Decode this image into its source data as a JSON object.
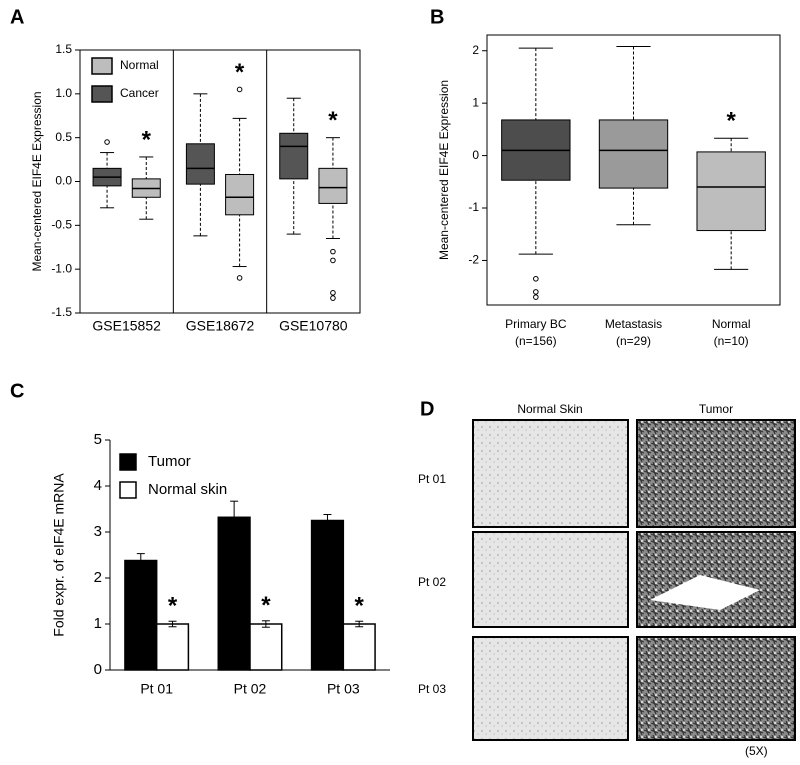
{
  "chart_data": [
    {
      "type": "box",
      "panel": "A",
      "ylabel": "Mean-centered EIF4E Expression",
      "categories": [
        "GSE15852",
        "GSE18672",
        "GSE10780"
      ],
      "ylim": [
        -1.5,
        1.5
      ],
      "yticks": [
        -1.5,
        {
          "value": -1,
          "label": "-1.0"
        },
        -0.5,
        {
          "value": 0,
          "label": "0.0"
        },
        0.5,
        {
          "value": 1,
          "label": "1.0"
        },
        1.5
      ],
      "legend": "top-left",
      "grid": false,
      "group_dividers": true,
      "series": [
        {
          "name": "Cancer",
          "color": "#555555",
          "boxes": [
            {
              "whislo": -0.3,
              "q1": -0.05,
              "med": 0.05,
              "q3": 0.15,
              "whishi": 0.33,
              "fliers": [
                0.45
              ]
            },
            {
              "whislo": -0.62,
              "q1": -0.03,
              "med": 0.15,
              "q3": 0.43,
              "whishi": 1.0,
              "fliers": []
            },
            {
              "whislo": -0.6,
              "q1": 0.03,
              "med": 0.4,
              "q3": 0.55,
              "whishi": 0.95,
              "fliers": []
            }
          ]
        },
        {
          "name": "Normal",
          "color": "#bdbdbd",
          "annotations": [
            "*",
            "*",
            "*"
          ],
          "boxes": [
            {
              "whislo": -0.43,
              "q1": -0.18,
              "med": -0.08,
              "q3": 0.03,
              "whishi": 0.28,
              "fliers": []
            },
            {
              "whislo": -0.97,
              "q1": -0.38,
              "med": -0.18,
              "q3": 0.08,
              "whishi": 0.72,
              "fliers": [
                1.05,
                -1.1
              ]
            },
            {
              "whislo": -0.65,
              "q1": -0.25,
              "med": -0.07,
              "q3": 0.15,
              "whishi": 0.5,
              "fliers": [
                -0.8,
                -0.9,
                -1.27,
                -1.33
              ]
            }
          ]
        }
      ]
    },
    {
      "type": "box",
      "panel": "B",
      "ylabel": "Mean-centered EIF4E Expression",
      "categories": [
        "Primary BC",
        "Metastasis",
        "Normal"
      ],
      "category_notes": [
        "(n=156)",
        "(n=29)",
        "(n=10)"
      ],
      "ylim": [
        -2.85,
        2.3
      ],
      "yticks": [
        -2,
        -1,
        0,
        1,
        2
      ],
      "grid": false,
      "colors": [
        "#4d4d4d",
        "#9a9a9a",
        "#bdbdbd"
      ],
      "annotations": [
        null,
        null,
        "*"
      ],
      "boxes": [
        {
          "whislo": -1.88,
          "q1": -0.47,
          "med": 0.1,
          "q3": 0.68,
          "whishi": 2.05,
          "fliers": [
            -2.35,
            -2.6,
            -2.7
          ]
        },
        {
          "whislo": -1.32,
          "q1": -0.62,
          "med": 0.1,
          "q3": 0.68,
          "whishi": 2.08,
          "fliers": []
        },
        {
          "whislo": -2.17,
          "q1": -1.43,
          "med": -0.6,
          "q3": 0.07,
          "whishi": 0.33,
          "fliers": []
        }
      ]
    },
    {
      "type": "bar",
      "panel": "C",
      "ylabel": "Fold expr. of eIF4E mRNA",
      "categories": [
        "Pt 01",
        "Pt 02",
        "Pt 03"
      ],
      "ylim": [
        0,
        5
      ],
      "yticks": [
        0,
        1,
        2,
        3,
        4,
        5
      ],
      "grid": false,
      "legend": "top-left",
      "series": [
        {
          "name": "Tumor",
          "color": "#000000",
          "values": [
            2.38,
            3.32,
            3.25
          ],
          "errors": [
            0.15,
            0.35,
            0.13
          ]
        },
        {
          "name": "Normal skin",
          "color": "#ffffff",
          "values": [
            1,
            1,
            1
          ],
          "errors": [
            0.06,
            0.07,
            0.06
          ],
          "annotations": [
            "*",
            "*",
            "*"
          ]
        }
      ]
    }
  ],
  "image_panel": {
    "panel": "D",
    "column_headers": [
      "Normal Skin",
      "Tumor"
    ],
    "row_labels": [
      "Pt 01",
      "Pt 02",
      "Pt 03"
    ],
    "magnification": "(5X)"
  }
}
